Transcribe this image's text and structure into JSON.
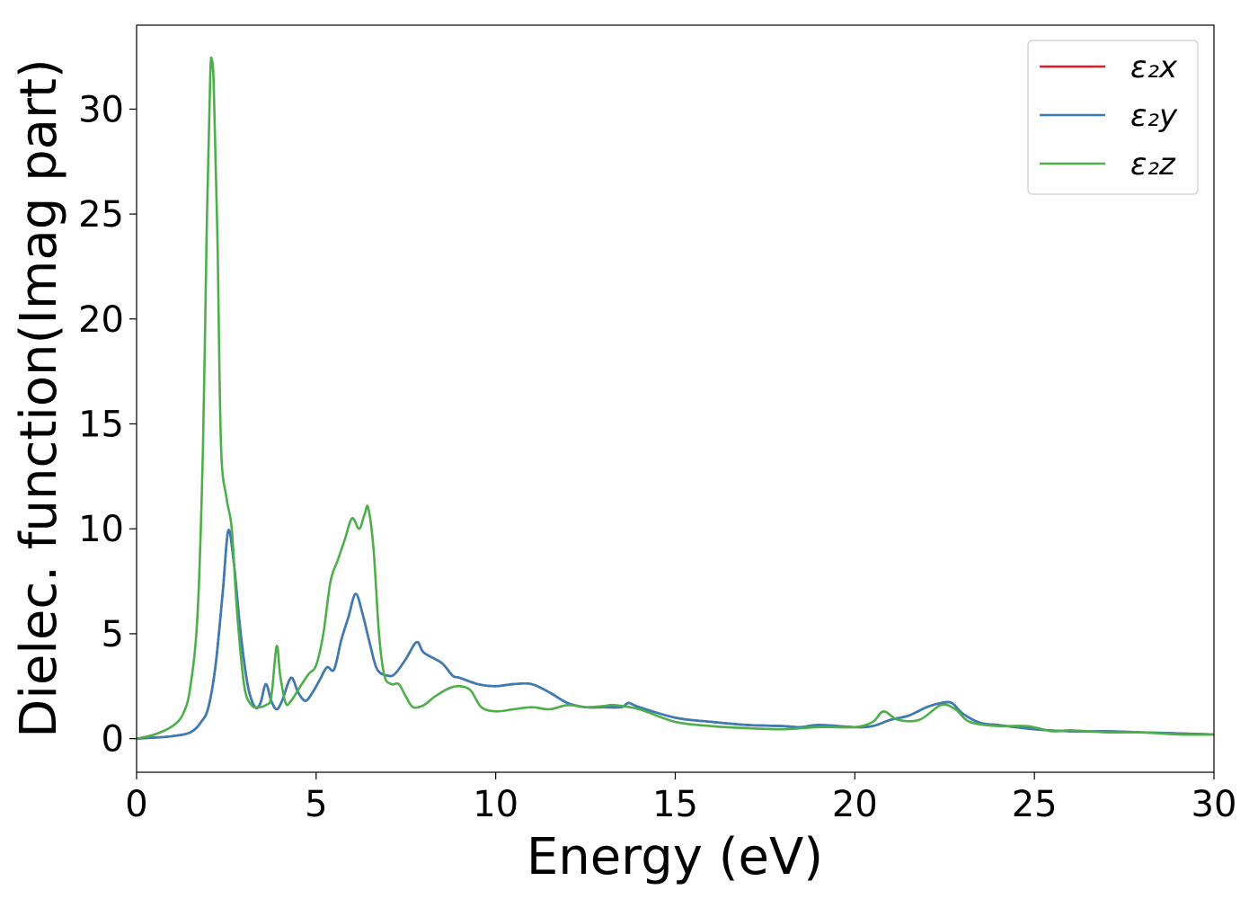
{
  "chart_data": {
    "type": "line",
    "title": "",
    "xlabel": "Energy (eV)",
    "ylabel": "Dielec. function(Imag part)",
    "xlim": [
      0,
      30
    ],
    "ylim": [
      -1.6,
      34
    ],
    "xticks": [
      0,
      5,
      10,
      15,
      20,
      25,
      30
    ],
    "yticks": [
      0,
      5,
      10,
      15,
      20,
      25,
      30
    ],
    "grid": false,
    "legend_position": "top-right",
    "legend": [
      "ε₂x",
      "ε₂y",
      "ε₂z"
    ],
    "series": [
      {
        "name": "ε₂x",
        "color": "#e41a1c",
        "x": [
          0,
          0.5,
          1.0,
          1.5,
          1.8,
          2.0,
          2.2,
          2.4,
          2.55,
          2.7,
          2.9,
          3.1,
          3.3,
          3.45,
          3.6,
          3.75,
          3.9,
          4.05,
          4.3,
          4.5,
          4.7,
          4.9,
          5.1,
          5.3,
          5.5,
          5.7,
          5.9,
          6.1,
          6.3,
          6.5,
          6.7,
          7.0,
          7.2,
          7.5,
          7.8,
          8.0,
          8.5,
          8.8,
          9.0,
          9.5,
          10.0,
          10.5,
          11.0,
          11.5,
          12.0,
          12.5,
          13.0,
          13.5,
          13.7,
          14.0,
          15.0,
          16.0,
          17.0,
          18.0,
          18.5,
          19.0,
          20.0,
          20.5,
          21.0,
          21.5,
          22.0,
          22.4,
          22.7,
          23.0,
          23.5,
          24.0,
          25.0,
          26.0,
          27.0,
          28.0,
          29.0,
          30.0
        ],
        "y": [
          0,
          0.05,
          0.12,
          0.3,
          0.8,
          1.5,
          3.5,
          7.0,
          9.9,
          8.5,
          5.0,
          2.5,
          1.5,
          1.7,
          2.6,
          1.8,
          1.4,
          1.8,
          2.9,
          2.2,
          1.8,
          2.2,
          2.8,
          3.4,
          3.3,
          4.7,
          5.8,
          6.9,
          5.9,
          4.5,
          3.3,
          3.0,
          3.1,
          3.8,
          4.6,
          4.1,
          3.6,
          3.0,
          2.9,
          2.6,
          2.5,
          2.6,
          2.6,
          2.2,
          1.7,
          1.5,
          1.5,
          1.5,
          1.7,
          1.5,
          1.0,
          0.8,
          0.65,
          0.6,
          0.55,
          0.65,
          0.55,
          0.6,
          0.9,
          1.1,
          1.5,
          1.7,
          1.7,
          1.2,
          0.75,
          0.65,
          0.45,
          0.35,
          0.35,
          0.3,
          0.25,
          0.2
        ]
      },
      {
        "name": "ε₂y",
        "color": "#377eb8",
        "x": [
          0,
          0.5,
          1.0,
          1.5,
          1.8,
          2.0,
          2.2,
          2.4,
          2.55,
          2.7,
          2.9,
          3.1,
          3.3,
          3.45,
          3.6,
          3.75,
          3.9,
          4.05,
          4.3,
          4.5,
          4.7,
          4.9,
          5.1,
          5.3,
          5.5,
          5.7,
          5.9,
          6.1,
          6.3,
          6.5,
          6.7,
          7.0,
          7.2,
          7.5,
          7.8,
          8.0,
          8.5,
          8.8,
          9.0,
          9.5,
          10.0,
          10.5,
          11.0,
          11.5,
          12.0,
          12.5,
          13.0,
          13.5,
          13.7,
          14.0,
          15.0,
          16.0,
          17.0,
          18.0,
          18.5,
          19.0,
          20.0,
          20.5,
          21.0,
          21.5,
          22.0,
          22.4,
          22.7,
          23.0,
          23.5,
          24.0,
          25.0,
          26.0,
          27.0,
          28.0,
          29.0,
          30.0
        ],
        "y": [
          0,
          0.05,
          0.12,
          0.3,
          0.8,
          1.5,
          3.5,
          7.0,
          9.9,
          8.5,
          5.0,
          2.5,
          1.5,
          1.7,
          2.6,
          1.8,
          1.4,
          1.8,
          2.9,
          2.2,
          1.8,
          2.2,
          2.8,
          3.4,
          3.3,
          4.7,
          5.8,
          6.9,
          5.9,
          4.5,
          3.3,
          3.0,
          3.1,
          3.8,
          4.6,
          4.1,
          3.6,
          3.0,
          2.9,
          2.6,
          2.5,
          2.6,
          2.6,
          2.2,
          1.7,
          1.5,
          1.5,
          1.5,
          1.7,
          1.5,
          1.0,
          0.8,
          0.65,
          0.6,
          0.55,
          0.65,
          0.55,
          0.6,
          0.9,
          1.1,
          1.5,
          1.7,
          1.7,
          1.2,
          0.75,
          0.65,
          0.45,
          0.35,
          0.35,
          0.3,
          0.25,
          0.2
        ]
      },
      {
        "name": "ε₂z",
        "color": "#4daf4a",
        "x": [
          0,
          0.5,
          1.0,
          1.3,
          1.5,
          1.7,
          1.85,
          1.95,
          2.05,
          2.1,
          2.15,
          2.25,
          2.35,
          2.5,
          2.65,
          2.8,
          3.0,
          3.2,
          3.4,
          3.6,
          3.75,
          3.9,
          4.0,
          4.15,
          4.3,
          4.6,
          4.8,
          5.0,
          5.2,
          5.4,
          5.6,
          5.8,
          6.0,
          6.2,
          6.35,
          6.45,
          6.6,
          6.75,
          6.9,
          7.1,
          7.3,
          7.5,
          7.7,
          8.0,
          8.3,
          8.7,
          9.0,
          9.3,
          9.6,
          10.0,
          10.5,
          11.0,
          11.5,
          12.0,
          12.5,
          13.0,
          13.3,
          14.0,
          15.0,
          16.0,
          17.0,
          18.0,
          19.0,
          20.0,
          20.5,
          20.8,
          21.2,
          21.8,
          22.4,
          22.8,
          23.2,
          24.0,
          24.8,
          25.5,
          26.0,
          27.0,
          28.0,
          29.0,
          30.0
        ],
        "y": [
          0,
          0.2,
          0.6,
          1.2,
          2.5,
          6.0,
          14.0,
          24.0,
          31.5,
          32.3,
          31.0,
          24.0,
          14.0,
          11.5,
          10.0,
          6.0,
          2.5,
          1.6,
          1.5,
          1.6,
          2.0,
          4.4,
          3.0,
          1.7,
          1.8,
          2.6,
          3.1,
          3.5,
          5.0,
          7.5,
          8.5,
          9.5,
          10.5,
          10.0,
          10.7,
          11.0,
          9.0,
          5.0,
          3.0,
          2.6,
          2.6,
          2.0,
          1.5,
          1.6,
          2.0,
          2.4,
          2.5,
          2.3,
          1.5,
          1.3,
          1.4,
          1.5,
          1.4,
          1.6,
          1.5,
          1.55,
          1.6,
          1.4,
          0.8,
          0.6,
          0.5,
          0.45,
          0.55,
          0.55,
          0.8,
          1.3,
          0.9,
          0.9,
          1.6,
          1.4,
          0.8,
          0.6,
          0.6,
          0.35,
          0.4,
          0.3,
          0.3,
          0.2,
          0.2
        ]
      }
    ]
  }
}
